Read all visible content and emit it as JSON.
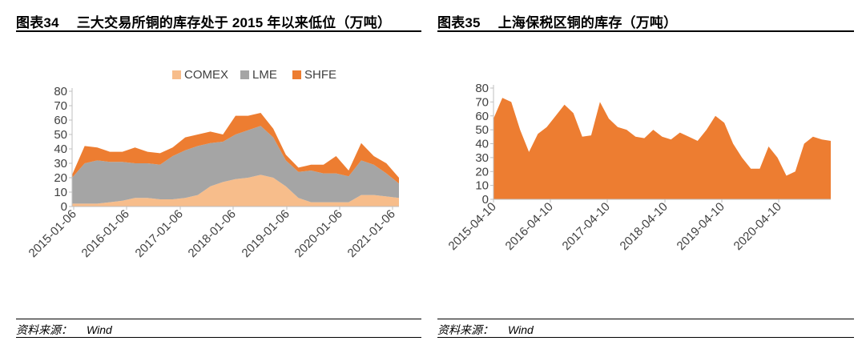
{
  "charts": [
    {
      "title_num": "图表34",
      "title_text": "三大交易所铜的库存处于 2015 年以来低位（万吨）",
      "source_label": "资料来源：",
      "source_value": "Wind"
    },
    {
      "title_num": "图表35",
      "title_text": "上海保税区铜的库存（万吨）",
      "source_label": "资料来源：",
      "source_value": "Wind"
    }
  ],
  "chart_data": [
    {
      "type": "area",
      "stacked": true,
      "x_tick_labels": [
        "2015-01-06",
        "2016-01-06",
        "2017-01-06",
        "2018-01-06",
        "2019-01-06",
        "2020-01-06",
        "2021-01-06"
      ],
      "x": [
        "2015-01",
        "2015-03",
        "2015-06",
        "2015-09",
        "2015-12",
        "2016-03",
        "2016-06",
        "2016-09",
        "2016-12",
        "2017-03",
        "2017-06",
        "2017-09",
        "2017-12",
        "2018-03",
        "2018-06",
        "2018-09",
        "2018-12",
        "2019-03",
        "2019-06",
        "2019-09",
        "2019-12",
        "2020-03",
        "2020-06",
        "2020-09",
        "2020-12",
        "2021-03",
        "2021-06"
      ],
      "series": [
        {
          "name": "COMEX",
          "color": "#f7bd8b",
          "values": [
            2,
            2,
            2,
            3,
            4,
            6,
            6,
            5,
            5,
            6,
            8,
            14,
            17,
            19,
            20,
            22,
            20,
            14,
            6,
            3,
            3,
            3,
            3,
            8,
            8,
            7,
            6
          ]
        },
        {
          "name": "LME",
          "color": "#a5a5a5",
          "values": [
            18,
            28,
            30,
            28,
            27,
            24,
            24,
            24,
            30,
            33,
            34,
            30,
            28,
            31,
            33,
            34,
            28,
            18,
            18,
            22,
            20,
            20,
            18,
            24,
            21,
            16,
            10
          ]
        },
        {
          "name": "SHFE",
          "color": "#ed7d31",
          "values": [
            2,
            12,
            9,
            7,
            7,
            11,
            8,
            8,
            6,
            9,
            8,
            8,
            5,
            13,
            10,
            9,
            6,
            4,
            3,
            4,
            6,
            12,
            4,
            12,
            6,
            7,
            4
          ]
        }
      ],
      "ylim": [
        0,
        80
      ],
      "y_ticks": [
        0,
        10,
        20,
        30,
        40,
        50,
        60,
        70,
        80
      ],
      "legend_position": "top",
      "grid": false
    },
    {
      "type": "area",
      "x_tick_labels": [
        "2015-04-10",
        "2016-04-10",
        "2017-04-10",
        "2018-04-10",
        "2019-04-10",
        "2020-04-10"
      ],
      "x": [
        "2015-04",
        "2015-06",
        "2015-08",
        "2015-10",
        "2015-12",
        "2016-02",
        "2016-04",
        "2016-06",
        "2016-08",
        "2016-10",
        "2016-12",
        "2017-02",
        "2017-04",
        "2017-06",
        "2017-08",
        "2017-10",
        "2017-12",
        "2018-02",
        "2018-04",
        "2018-06",
        "2018-08",
        "2018-10",
        "2018-12",
        "2019-02",
        "2019-04",
        "2019-06",
        "2019-08",
        "2019-10",
        "2019-12",
        "2020-02",
        "2020-04",
        "2020-06",
        "2020-08",
        "2020-10",
        "2020-12",
        "2021-02",
        "2021-04",
        "2021-06",
        "2021-08"
      ],
      "series": [
        {
          "name": "",
          "color": "#ed7d31",
          "values": [
            58,
            73,
            70,
            50,
            34,
            47,
            52,
            60,
            68,
            62,
            45,
            46,
            70,
            58,
            52,
            50,
            45,
            44,
            50,
            45,
            43,
            48,
            45,
            42,
            50,
            60,
            55,
            40,
            30,
            22,
            22,
            38,
            30,
            17,
            20,
            40,
            45,
            43,
            42
          ]
        }
      ],
      "ylim": [
        0,
        80
      ],
      "y_ticks": [
        0,
        10,
        20,
        30,
        40,
        50,
        60,
        70,
        80
      ],
      "grid": false
    }
  ]
}
